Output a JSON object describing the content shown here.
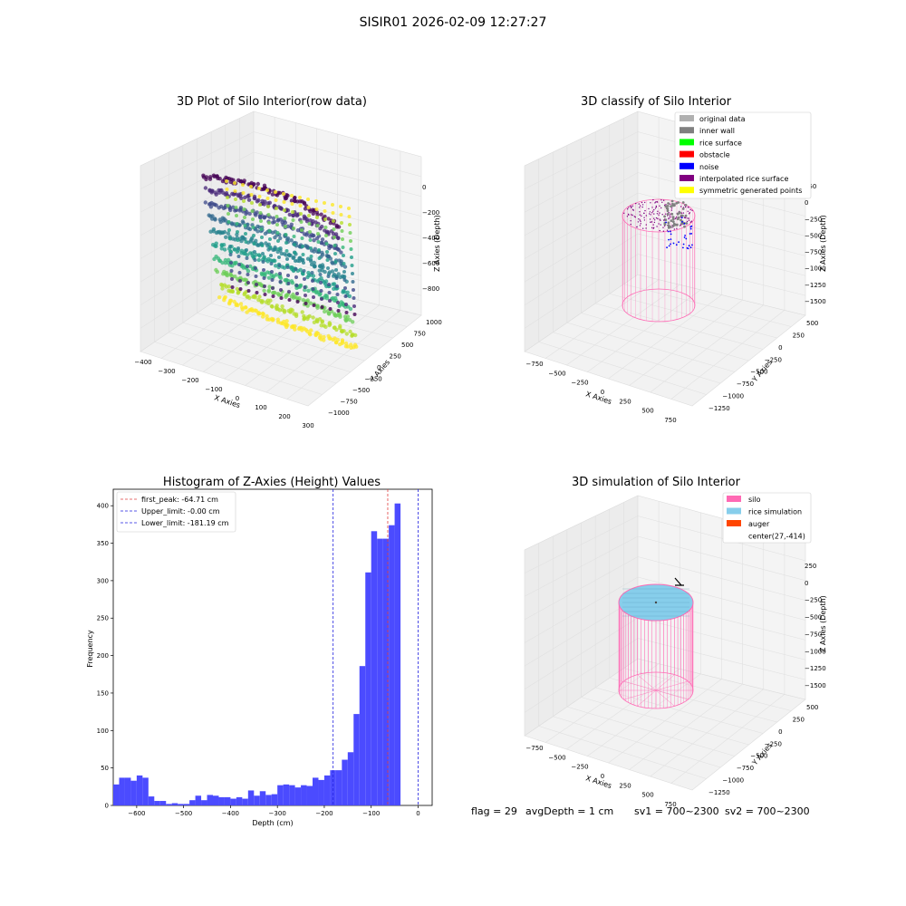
{
  "suptitle": "SISIR01 2026-02-09 12:27:27",
  "status": {
    "flag": "flag = 29",
    "avg_depth": "avgDepth = 1 cm",
    "sv1": "sv1 = 700~2300",
    "sv2": "sv2 = 700~2300"
  },
  "colors": {
    "original": "#b0b0b0",
    "inner_wall": "#808080",
    "rice_surface": "#00ff00",
    "obstacle": "#ff0000",
    "noise": "#0000ff",
    "interpolated": "#800080",
    "symmetric": "#ffff00",
    "silo": "#ff69b4",
    "rice_sim": "#87ceeb",
    "auger": "#ff4500",
    "hist_bar": "#4b4bff",
    "first_peak": "#e04040",
    "limit": "#2020e0"
  },
  "chart_data": [
    {
      "type": "scatter",
      "projection": "3d",
      "title": "3D Plot of Silo Interior(row data)",
      "xlabel": "X Axies",
      "ylabel": "Y Axies",
      "zlabel": "Z Axies (Depth)",
      "xticks": [
        "−400",
        "−300",
        "−200",
        "−100",
        "0",
        "100",
        "200",
        "300"
      ],
      "yticks": [
        "−1000",
        "−750",
        "−500",
        "−250",
        "0",
        "250",
        "500",
        "750",
        "1000"
      ],
      "zticks": [
        "−800",
        "−600",
        "−400",
        "−200",
        "0"
      ],
      "colormap": "viridis"
    },
    {
      "type": "scatter",
      "projection": "3d",
      "title": "3D classify of Silo Interior",
      "xlabel": "X Axies",
      "ylabel": "Y Axies",
      "zlabel": "Z Axies (Depth)",
      "xticks": [
        "−750",
        "−500",
        "−250",
        "0",
        "250",
        "500",
        "750"
      ],
      "yticks": [
        "−1250",
        "−1000",
        "−750",
        "−500",
        "−250",
        "0",
        "250",
        "500"
      ],
      "zticks": [
        "−1500",
        "−1250",
        "−1000",
        "−750",
        "−500",
        "−250",
        "0",
        "250"
      ],
      "legend": [
        "original data",
        "inner wall",
        "rice surface",
        "obstacle",
        "noise",
        "interpolated rice surface",
        "symmetric generated points"
      ],
      "legend_loc": "upper right"
    },
    {
      "type": "bar",
      "title": "Histogram of Z-Axies (Height) Values",
      "xlabel": "Depth (cm)",
      "ylabel": "Frequency",
      "xlim": [
        -650,
        30
      ],
      "ylim": [
        0,
        422
      ],
      "xticks": [
        -600,
        -500,
        -400,
        -300,
        -200,
        -100,
        0
      ],
      "xtick_labels": [
        "−600",
        "−500",
        "−400",
        "−300",
        "−200",
        "−100",
        "0"
      ],
      "yticks": [
        0,
        50,
        100,
        150,
        200,
        250,
        300,
        350,
        400
      ],
      "bin_width": 12.5,
      "bin_start": -650,
      "values": [
        28,
        37,
        37,
        33,
        40,
        37,
        12,
        6,
        6,
        2,
        3,
        2,
        2,
        7,
        13,
        7,
        14,
        13,
        11,
        11,
        9,
        11,
        9,
        20,
        13,
        19,
        14,
        15,
        27,
        28,
        27,
        24,
        27,
        26,
        37,
        34,
        40,
        47,
        47,
        61,
        71,
        122,
        186,
        311,
        366,
        356,
        356,
        374,
        403
      ],
      "vlines": [
        {
          "label": "first_peak: -64.71 cm",
          "x": -64.71,
          "color": "#e04040"
        },
        {
          "label": "Upper_limit: -0.00 cm",
          "x": 0,
          "color": "#2020e0"
        },
        {
          "label": "Lower_limit: -181.19 cm",
          "x": -181.19,
          "color": "#2020e0"
        }
      ],
      "legend_loc": "upper left"
    },
    {
      "type": "surface",
      "projection": "3d",
      "title": "3D simulation of Silo Interior",
      "xlabel": "X Axies",
      "ylabel": "Y Axies",
      "zlabel": "Z Axies (Depth)",
      "xticks": [
        "−750",
        "−500",
        "−250",
        "0",
        "250",
        "500",
        "750"
      ],
      "yticks": [
        "−1250",
        "−1000",
        "−750",
        "−500",
        "−250",
        "0",
        "250",
        "500"
      ],
      "zticks": [
        "−1500",
        "−1250",
        "−1000",
        "−750",
        "−500",
        "−250",
        "0",
        "250"
      ],
      "legend": [
        "silo",
        "rice simulation",
        "auger",
        "center(27,-414)"
      ],
      "legend_loc": "upper right"
    }
  ]
}
